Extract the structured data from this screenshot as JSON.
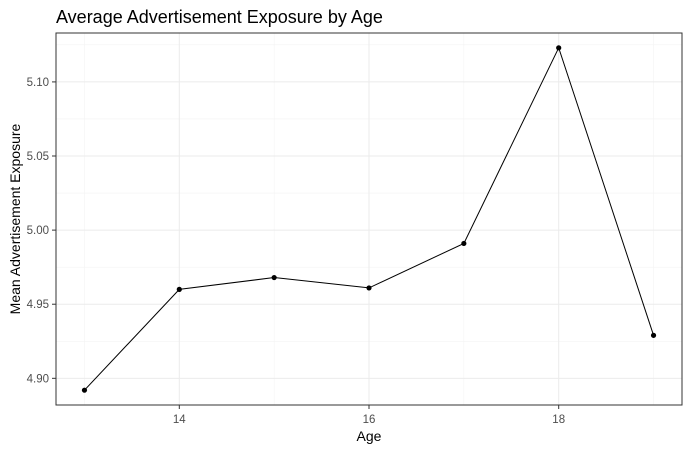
{
  "chart_data": {
    "type": "line",
    "title": "Average Advertisement Exposure by Age",
    "xlabel": "Age",
    "ylabel": "Mean Advertisement Exposure",
    "x": [
      13,
      14,
      15,
      16,
      17,
      18,
      19
    ],
    "y": [
      4.892,
      4.96,
      4.968,
      4.961,
      4.991,
      5.123,
      4.929
    ],
    "xlim": [
      12.7,
      19.3
    ],
    "ylim": [
      4.882,
      5.133
    ],
    "x_ticks": [
      14,
      16,
      18
    ],
    "x_tick_labels": [
      "14",
      "16",
      "18"
    ],
    "y_ticks": [
      4.9,
      4.95,
      5.0,
      5.05,
      5.1
    ],
    "y_tick_labels": [
      "4.90",
      "4.95",
      "5.00",
      "5.05",
      "5.10"
    ],
    "grid": true,
    "line_color": "#000000",
    "point_color": "#000000"
  }
}
